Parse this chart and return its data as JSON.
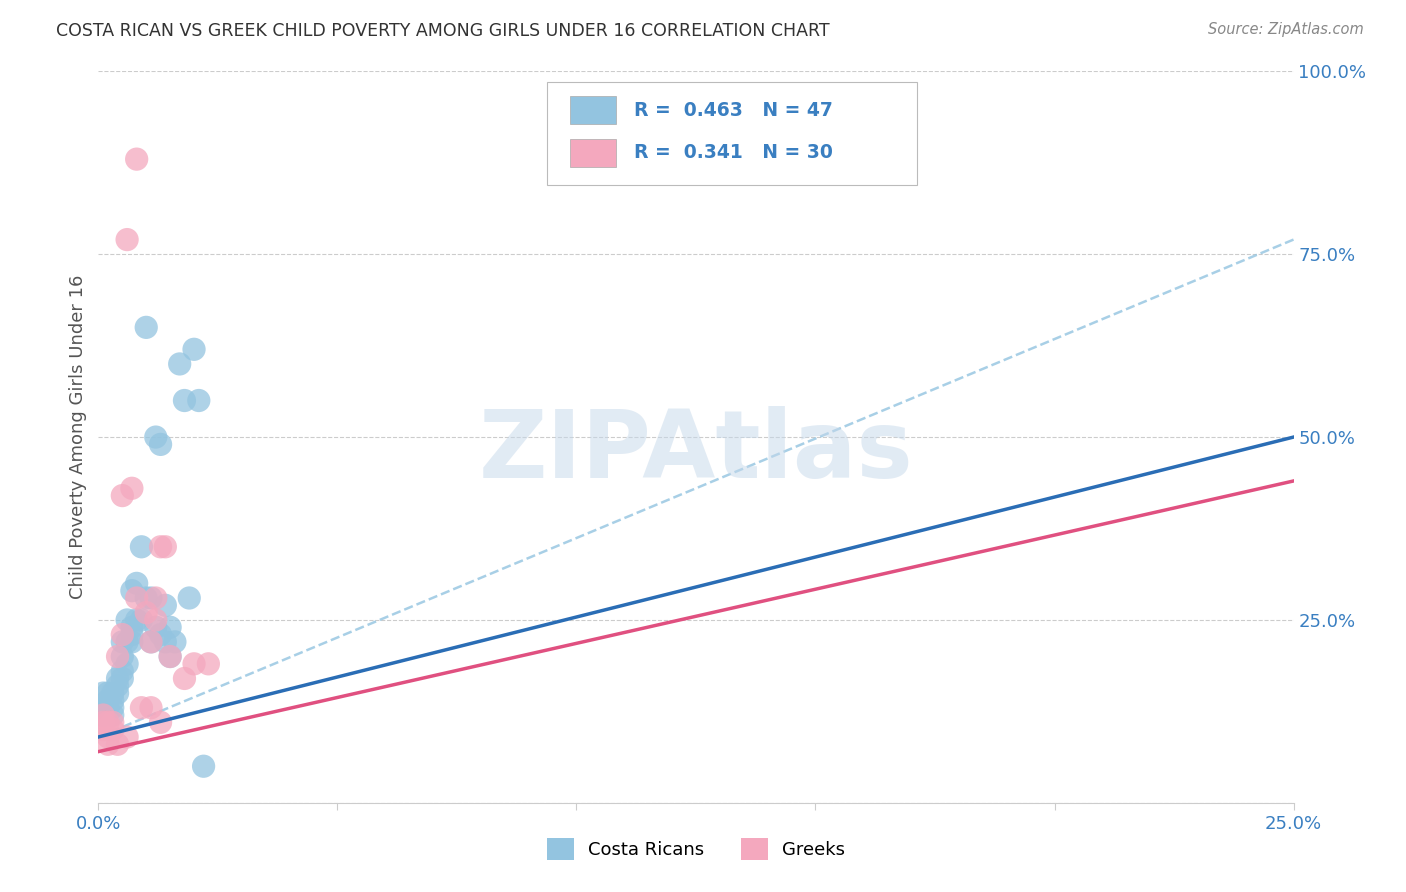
{
  "title": "COSTA RICAN VS GREEK CHILD POVERTY AMONG GIRLS UNDER 16 CORRELATION CHART",
  "source": "Source: ZipAtlas.com",
  "ylabel": "Child Poverty Among Girls Under 16",
  "xlim": [
    0.0,
    0.25
  ],
  "ylim": [
    0.0,
    1.0
  ],
  "xticks": [
    0.0,
    0.05,
    0.1,
    0.15,
    0.2,
    0.25
  ],
  "yticks": [
    0.0,
    0.25,
    0.5,
    0.75,
    1.0
  ],
  "xtick_labels": [
    "0.0%",
    "",
    "",
    "",
    "",
    "25.0%"
  ],
  "ytick_labels_right": [
    "",
    "25.0%",
    "50.0%",
    "75.0%",
    "100.0%"
  ],
  "blue_color": "#93c4e0",
  "pink_color": "#f4a8be",
  "blue_line_color": "#2a6db5",
  "pink_line_color": "#e05080",
  "dashed_line_color": "#93c4e0",
  "R_blue": 0.463,
  "N_blue": 47,
  "R_pink": 0.341,
  "N_pink": 30,
  "watermark": "ZIPAtlas",
  "watermark_color": "#c5d8ea",
  "legend_label_blue": "Costa Ricans",
  "legend_label_pink": "Greeks",
  "blue_line_x": [
    0.0,
    0.25
  ],
  "blue_line_y": [
    0.09,
    0.5
  ],
  "pink_line_x": [
    0.0,
    0.25
  ],
  "pink_line_y": [
    0.07,
    0.44
  ],
  "dashed_line_x": [
    0.0,
    0.25
  ],
  "dashed_line_y": [
    0.09,
    0.77
  ],
  "blue_scatter": [
    [
      0.001,
      0.13
    ],
    [
      0.001,
      0.15
    ],
    [
      0.001,
      0.12
    ],
    [
      0.002,
      0.15
    ],
    [
      0.002,
      0.14
    ],
    [
      0.002,
      0.13
    ],
    [
      0.003,
      0.15
    ],
    [
      0.003,
      0.14
    ],
    [
      0.003,
      0.13
    ],
    [
      0.003,
      0.12
    ],
    [
      0.004,
      0.17
    ],
    [
      0.004,
      0.16
    ],
    [
      0.004,
      0.15
    ],
    [
      0.005,
      0.18
    ],
    [
      0.005,
      0.17
    ],
    [
      0.005,
      0.22
    ],
    [
      0.005,
      0.2
    ],
    [
      0.006,
      0.19
    ],
    [
      0.006,
      0.22
    ],
    [
      0.006,
      0.25
    ],
    [
      0.007,
      0.29
    ],
    [
      0.007,
      0.24
    ],
    [
      0.007,
      0.23
    ],
    [
      0.007,
      0.22
    ],
    [
      0.008,
      0.3
    ],
    [
      0.008,
      0.25
    ],
    [
      0.009,
      0.35
    ],
    [
      0.009,
      0.25
    ],
    [
      0.01,
      0.65
    ],
    [
      0.01,
      0.28
    ],
    [
      0.011,
      0.28
    ],
    [
      0.011,
      0.22
    ],
    [
      0.012,
      0.5
    ],
    [
      0.012,
      0.24
    ],
    [
      0.013,
      0.49
    ],
    [
      0.013,
      0.23
    ],
    [
      0.014,
      0.27
    ],
    [
      0.014,
      0.22
    ],
    [
      0.015,
      0.24
    ],
    [
      0.015,
      0.2
    ],
    [
      0.016,
      0.22
    ],
    [
      0.017,
      0.6
    ],
    [
      0.018,
      0.55
    ],
    [
      0.019,
      0.28
    ],
    [
      0.02,
      0.62
    ],
    [
      0.021,
      0.55
    ],
    [
      0.022,
      0.05
    ]
  ],
  "pink_scatter": [
    [
      0.001,
      0.1
    ],
    [
      0.001,
      0.12
    ],
    [
      0.001,
      0.11
    ],
    [
      0.002,
      0.11
    ],
    [
      0.002,
      0.09
    ],
    [
      0.002,
      0.08
    ],
    [
      0.003,
      0.11
    ],
    [
      0.003,
      0.1
    ],
    [
      0.004,
      0.2
    ],
    [
      0.004,
      0.08
    ],
    [
      0.005,
      0.42
    ],
    [
      0.005,
      0.23
    ],
    [
      0.006,
      0.77
    ],
    [
      0.006,
      0.09
    ],
    [
      0.007,
      0.43
    ],
    [
      0.008,
      0.88
    ],
    [
      0.008,
      0.28
    ],
    [
      0.009,
      0.13
    ],
    [
      0.01,
      0.26
    ],
    [
      0.011,
      0.22
    ],
    [
      0.011,
      0.13
    ],
    [
      0.012,
      0.28
    ],
    [
      0.012,
      0.25
    ],
    [
      0.013,
      0.11
    ],
    [
      0.013,
      0.35
    ],
    [
      0.014,
      0.35
    ],
    [
      0.015,
      0.2
    ],
    [
      0.018,
      0.17
    ],
    [
      0.02,
      0.19
    ],
    [
      0.023,
      0.19
    ]
  ]
}
